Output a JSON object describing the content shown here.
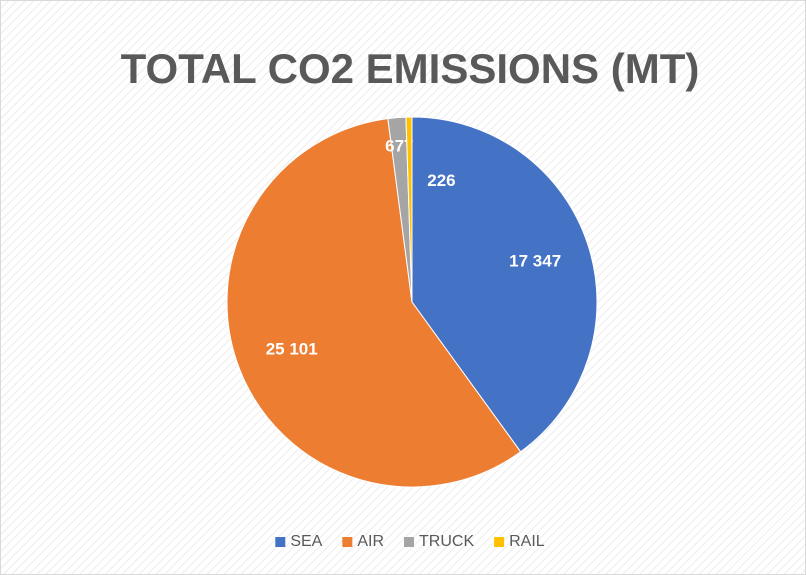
{
  "chart_data": {
    "type": "pie",
    "title": "TOTAL CO2 EMISSIONS (MT)",
    "categories": [
      "SEA",
      "AIR",
      "TRUCK",
      "RAIL"
    ],
    "values": [
      17347,
      25101,
      677,
      226
    ],
    "value_labels": [
      "17 347",
      "25 101",
      "677",
      "226"
    ],
    "colors": [
      "#4472c4",
      "#ed7d31",
      "#a5a5a5",
      "#ffc000"
    ],
    "legend": "bottom"
  }
}
